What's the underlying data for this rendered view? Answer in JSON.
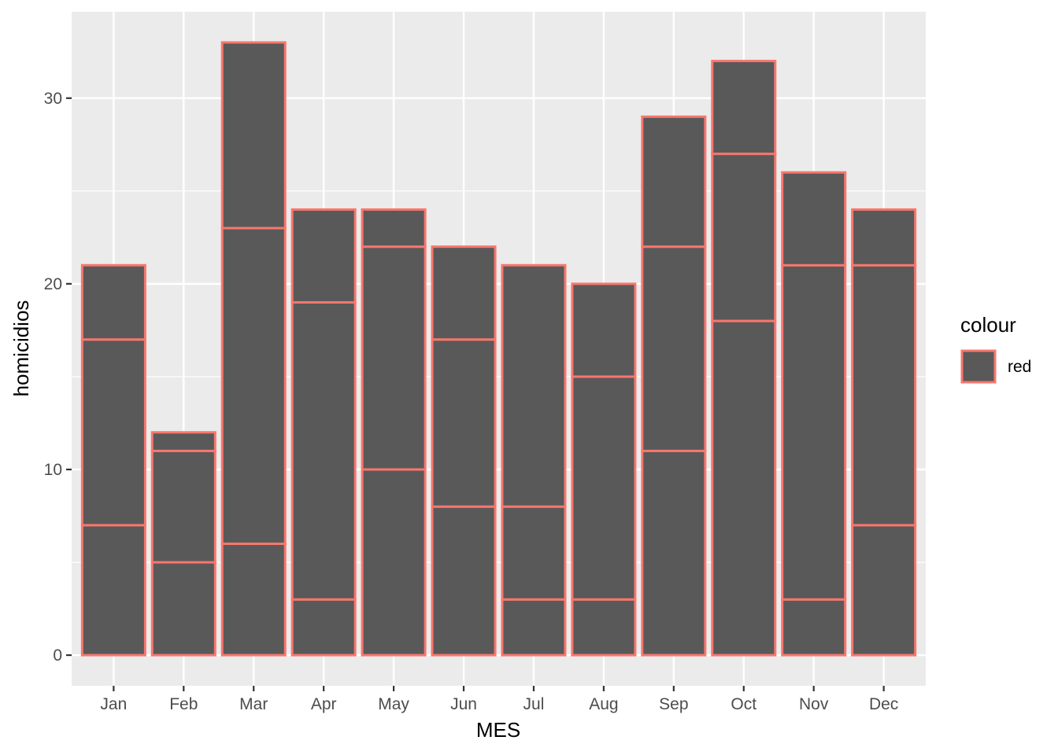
{
  "chart_data": {
    "type": "bar",
    "stacked": true,
    "categories": [
      "Jan",
      "Feb",
      "Mar",
      "Apr",
      "May",
      "Jun",
      "Jul",
      "Aug",
      "Sep",
      "Oct",
      "Nov",
      "Dec"
    ],
    "segments": [
      [
        7,
        10,
        4
      ],
      [
        5,
        6,
        1
      ],
      [
        6,
        17,
        10
      ],
      [
        3,
        16,
        5
      ],
      [
        10,
        12,
        2
      ],
      [
        8,
        9,
        5
      ],
      [
        3,
        5,
        13
      ],
      [
        3,
        12,
        5
      ],
      [
        11,
        11,
        7
      ],
      [
        18,
        9,
        5
      ],
      [
        3,
        18,
        5
      ],
      [
        7,
        14,
        3
      ]
    ],
    "totals": [
      21,
      12,
      33,
      24,
      24,
      22,
      21,
      20,
      29,
      32,
      26,
      24
    ],
    "xlabel": "MES",
    "ylabel": "homicidios",
    "ylim": [
      -1.65,
      34.65
    ],
    "yticks": [
      0,
      10,
      20,
      30
    ],
    "grid": true,
    "legend": {
      "title": "colour",
      "position": "right",
      "entries": [
        {
          "label": "red"
        }
      ]
    },
    "colors": {
      "fill": "#595959",
      "outline": "#F8766D",
      "panel": "#EBEBEB",
      "grid": "#FFFFFF"
    }
  }
}
